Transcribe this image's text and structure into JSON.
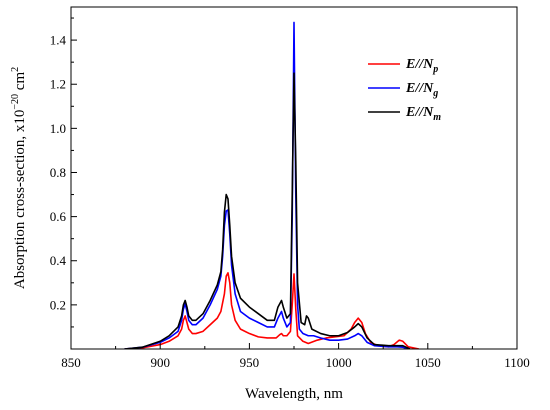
{
  "chart_data": {
    "type": "line",
    "title": "",
    "xlabel": "Wavelength, nm",
    "ylabel": "Absorption cross-section, x10",
    "ylabel_exp1": "−20",
    "ylabel_unit": " cm",
    "ylabel_exp2": "2",
    "xlim": [
      850,
      1100
    ],
    "ylim": [
      0,
      1.55
    ],
    "xticks": [
      850,
      900,
      950,
      1000,
      1050,
      1100
    ],
    "yticks": [
      0.2,
      0.4,
      0.6,
      0.8,
      1.0,
      1.2,
      1.4
    ],
    "ytick_labels": [
      "0.2",
      "0.4",
      "0.6",
      "0.8",
      "1.0",
      "1.2",
      "1.4"
    ],
    "grid": false,
    "legend_position": "top-right",
    "series": [
      {
        "name_base": "E//N",
        "name_sub": "p",
        "color": "#ff0000",
        "points": [
          [
            880,
            0.0
          ],
          [
            890,
            0.005
          ],
          [
            900,
            0.02
          ],
          [
            905,
            0.035
          ],
          [
            910,
            0.06
          ],
          [
            912,
            0.09
          ],
          [
            913,
            0.13
          ],
          [
            914,
            0.15
          ],
          [
            915,
            0.12
          ],
          [
            916,
            0.09
          ],
          [
            918,
            0.07
          ],
          [
            920,
            0.07
          ],
          [
            924,
            0.08
          ],
          [
            928,
            0.11
          ],
          [
            932,
            0.14
          ],
          [
            934,
            0.17
          ],
          [
            936,
            0.25
          ],
          [
            937,
            0.33
          ],
          [
            938,
            0.345
          ],
          [
            939,
            0.3
          ],
          [
            940,
            0.2
          ],
          [
            942,
            0.13
          ],
          [
            945,
            0.09
          ],
          [
            950,
            0.07
          ],
          [
            955,
            0.055
          ],
          [
            960,
            0.05
          ],
          [
            965,
            0.05
          ],
          [
            967,
            0.065
          ],
          [
            968,
            0.07
          ],
          [
            969,
            0.06
          ],
          [
            971,
            0.06
          ],
          [
            973,
            0.08
          ],
          [
            974,
            0.2
          ],
          [
            975,
            0.34
          ],
          [
            976,
            0.18
          ],
          [
            977,
            0.06
          ],
          [
            980,
            0.035
          ],
          [
            983,
            0.025
          ],
          [
            988,
            0.04
          ],
          [
            993,
            0.05
          ],
          [
            998,
            0.055
          ],
          [
            1003,
            0.06
          ],
          [
            1007,
            0.09
          ],
          [
            1009,
            0.12
          ],
          [
            1011,
            0.14
          ],
          [
            1013,
            0.12
          ],
          [
            1015,
            0.07
          ],
          [
            1018,
            0.03
          ],
          [
            1022,
            0.015
          ],
          [
            1028,
            0.01
          ],
          [
            1031,
            0.02
          ],
          [
            1034,
            0.04
          ],
          [
            1036,
            0.035
          ],
          [
            1039,
            0.01
          ],
          [
            1045,
            0.0
          ]
        ]
      },
      {
        "name_base": "E//N",
        "name_sub": "g",
        "color": "#0000ff",
        "points": [
          [
            880,
            0.0
          ],
          [
            890,
            0.008
          ],
          [
            900,
            0.03
          ],
          [
            905,
            0.05
          ],
          [
            910,
            0.08
          ],
          [
            912,
            0.13
          ],
          [
            913,
            0.18
          ],
          [
            914,
            0.205
          ],
          [
            915,
            0.17
          ],
          [
            916,
            0.13
          ],
          [
            918,
            0.11
          ],
          [
            920,
            0.11
          ],
          [
            924,
            0.14
          ],
          [
            928,
            0.2
          ],
          [
            932,
            0.27
          ],
          [
            934,
            0.33
          ],
          [
            935,
            0.42
          ],
          [
            936,
            0.56
          ],
          [
            937,
            0.625
          ],
          [
            938,
            0.63
          ],
          [
            939,
            0.52
          ],
          [
            940,
            0.38
          ],
          [
            942,
            0.25
          ],
          [
            945,
            0.17
          ],
          [
            950,
            0.14
          ],
          [
            955,
            0.12
          ],
          [
            960,
            0.1
          ],
          [
            964,
            0.1
          ],
          [
            966,
            0.14
          ],
          [
            968,
            0.17
          ],
          [
            969,
            0.14
          ],
          [
            971,
            0.1
          ],
          [
            973,
            0.12
          ],
          [
            974,
            0.6
          ],
          [
            975,
            1.48
          ],
          [
            976,
            0.7
          ],
          [
            977,
            0.2
          ],
          [
            978,
            0.09
          ],
          [
            980,
            0.07
          ],
          [
            983,
            0.06
          ],
          [
            986,
            0.06
          ],
          [
            990,
            0.05
          ],
          [
            995,
            0.04
          ],
          [
            1000,
            0.04
          ],
          [
            1005,
            0.045
          ],
          [
            1009,
            0.06
          ],
          [
            1011,
            0.07
          ],
          [
            1013,
            0.06
          ],
          [
            1016,
            0.03
          ],
          [
            1020,
            0.015
          ],
          [
            1028,
            0.01
          ],
          [
            1033,
            0.01
          ],
          [
            1036,
            0.008
          ],
          [
            1040,
            0.0
          ]
        ]
      },
      {
        "name_base": "E//N",
        "name_sub": "m",
        "color": "#000000",
        "points": [
          [
            880,
            0.0
          ],
          [
            890,
            0.008
          ],
          [
            900,
            0.035
          ],
          [
            905,
            0.06
          ],
          [
            910,
            0.1
          ],
          [
            912,
            0.15
          ],
          [
            913,
            0.2
          ],
          [
            914,
            0.22
          ],
          [
            915,
            0.19
          ],
          [
            916,
            0.15
          ],
          [
            918,
            0.13
          ],
          [
            920,
            0.13
          ],
          [
            924,
            0.16
          ],
          [
            928,
            0.22
          ],
          [
            932,
            0.29
          ],
          [
            934,
            0.35
          ],
          [
            935,
            0.45
          ],
          [
            936,
            0.62
          ],
          [
            937,
            0.7
          ],
          [
            938,
            0.68
          ],
          [
            939,
            0.56
          ],
          [
            940,
            0.42
          ],
          [
            942,
            0.3
          ],
          [
            945,
            0.23
          ],
          [
            950,
            0.19
          ],
          [
            955,
            0.16
          ],
          [
            960,
            0.13
          ],
          [
            964,
            0.13
          ],
          [
            966,
            0.19
          ],
          [
            968,
            0.22
          ],
          [
            969,
            0.19
          ],
          [
            971,
            0.14
          ],
          [
            973,
            0.16
          ],
          [
            974,
            0.7
          ],
          [
            975,
            1.25
          ],
          [
            976,
            0.85
          ],
          [
            977,
            0.3
          ],
          [
            979,
            0.12
          ],
          [
            981,
            0.11
          ],
          [
            982,
            0.15
          ],
          [
            983,
            0.14
          ],
          [
            985,
            0.09
          ],
          [
            990,
            0.07
          ],
          [
            995,
            0.06
          ],
          [
            1000,
            0.06
          ],
          [
            1005,
            0.075
          ],
          [
            1009,
            0.1
          ],
          [
            1011,
            0.115
          ],
          [
            1013,
            0.1
          ],
          [
            1016,
            0.05
          ],
          [
            1020,
            0.02
          ],
          [
            1028,
            0.015
          ],
          [
            1033,
            0.015
          ],
          [
            1036,
            0.015
          ],
          [
            1040,
            0.0
          ]
        ]
      }
    ]
  }
}
